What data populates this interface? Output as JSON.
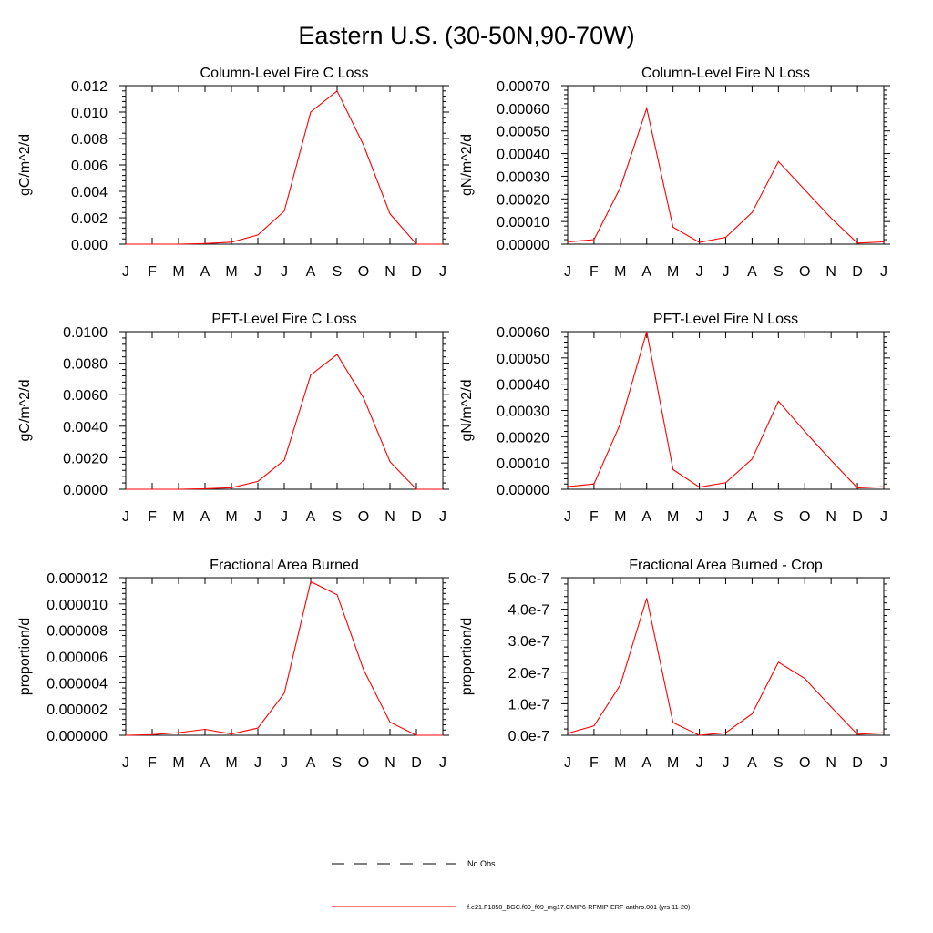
{
  "figure": {
    "title": "Eastern U.S. (30-50N,90-70W)"
  },
  "legend": {
    "obs_label": "No Obs",
    "model_label": "f.e21.F1850_BGC.f09_f09_mg17.CMIP6-RFMIP-ERF-anthro.001 (yrs 11-20)",
    "model_color": "#ff0000",
    "obs_color": "#000000"
  },
  "chart_data": [
    {
      "type": "line",
      "title": "Column-Level Fire C Loss",
      "ylabel": "gC/m^2/d",
      "xlabel": "",
      "categories": [
        "J",
        "F",
        "M",
        "A",
        "M",
        "J",
        "J",
        "A",
        "S",
        "O",
        "N",
        "D",
        "J"
      ],
      "ylim": [
        0,
        0.012
      ],
      "yticks": [
        0,
        0.002,
        0.004,
        0.006,
        0.008,
        0.01,
        0.012
      ],
      "ytick_labels": [
        "0.000",
        "0.002",
        "0.004",
        "0.006",
        "0.008",
        "0.010",
        "0.012"
      ],
      "series": [
        {
          "name": "f.e21.F1850_BGC.f09_f09_mg17.CMIP6-RFMIP-ERF-anthro.001 (yrs 11-20)",
          "color": "#ff0000",
          "values": [
            0.0,
            0.0,
            0.0,
            5e-05,
            0.00015,
            0.0007,
            0.0025,
            0.01,
            0.0116,
            0.0075,
            0.0023,
            0.0,
            0.0
          ]
        }
      ]
    },
    {
      "type": "line",
      "title": "Column-Level Fire N Loss",
      "ylabel": "gN/m^2/d",
      "xlabel": "",
      "categories": [
        "J",
        "F",
        "M",
        "A",
        "M",
        "J",
        "J",
        "A",
        "S",
        "O",
        "N",
        "D",
        "J"
      ],
      "ylim": [
        0,
        0.0007
      ],
      "yticks": [
        0,
        0.0001,
        0.0002,
        0.0003,
        0.0004,
        0.0005,
        0.0006,
        0.0007
      ],
      "ytick_labels": [
        "0.00000",
        "0.00010",
        "0.00020",
        "0.00030",
        "0.00040",
        "0.00050",
        "0.00060",
        "0.00070"
      ],
      "series": [
        {
          "name": "f.e21.F1850_BGC.f09_f09_mg17.CMIP6-RFMIP-ERF-anthro.001 (yrs 11-20)",
          "color": "#ff0000",
          "values": [
            1e-05,
            2e-05,
            0.00025,
            0.0006,
            7.5e-05,
            8e-06,
            3e-05,
            0.00014,
            0.000365,
            0.00024,
            0.000115,
            5e-06,
            1e-05
          ]
        }
      ]
    },
    {
      "type": "line",
      "title": "PFT-Level Fire C Loss",
      "ylabel": "gC/m^2/d",
      "xlabel": "",
      "categories": [
        "J",
        "F",
        "M",
        "A",
        "M",
        "J",
        "J",
        "A",
        "S",
        "O",
        "N",
        "D",
        "J"
      ],
      "ylim": [
        0,
        0.01
      ],
      "yticks": [
        0,
        0.002,
        0.004,
        0.006,
        0.008,
        0.01
      ],
      "ytick_labels": [
        "0.0000",
        "0.0020",
        "0.0040",
        "0.0060",
        "0.0080",
        "0.0100"
      ],
      "series": [
        {
          "name": "f.e21.F1850_BGC.f09_f09_mg17.CMIP6-RFMIP-ERF-anthro.001 (yrs 11-20)",
          "color": "#ff0000",
          "values": [
            0.0,
            0.0,
            0.0,
            3e-05,
            0.0001,
            0.0005,
            0.00185,
            0.00725,
            0.00855,
            0.0058,
            0.00175,
            0.0,
            0.0
          ]
        }
      ]
    },
    {
      "type": "line",
      "title": "PFT-Level Fire N Loss",
      "ylabel": "gN/m^2/d",
      "xlabel": "",
      "categories": [
        "J",
        "F",
        "M",
        "A",
        "M",
        "J",
        "J",
        "A",
        "S",
        "O",
        "N",
        "D",
        "J"
      ],
      "ylim": [
        0,
        0.0006
      ],
      "yticks": [
        0,
        0.0001,
        0.0002,
        0.0003,
        0.0004,
        0.0005,
        0.0006
      ],
      "ytick_labels": [
        "0.00000",
        "0.00010",
        "0.00020",
        "0.00030",
        "0.00040",
        "0.00050",
        "0.00060"
      ],
      "series": [
        {
          "name": "f.e21.F1850_BGC.f09_f09_mg17.CMIP6-RFMIP-ERF-anthro.001 (yrs 11-20)",
          "color": "#ff0000",
          "values": [
            1e-05,
            2e-05,
            0.00025,
            0.0006,
            7.5e-05,
            8e-06,
            2.5e-05,
            0.000115,
            0.000335,
            0.00022,
            0.00011,
            5e-06,
            1e-05
          ]
        }
      ]
    },
    {
      "type": "line",
      "title": "Fractional Area Burned",
      "ylabel": "proportion/d",
      "xlabel": "",
      "categories": [
        "J",
        "F",
        "M",
        "A",
        "M",
        "J",
        "J",
        "A",
        "S",
        "O",
        "N",
        "D",
        "J"
      ],
      "ylim": [
        0,
        1.2e-05
      ],
      "yticks": [
        0,
        2e-06,
        4e-06,
        6e-06,
        8e-06,
        1e-05,
        1.2e-05
      ],
      "ytick_labels": [
        "0.000000",
        "0.000002",
        "0.000004",
        "0.000006",
        "0.000008",
        "0.000010",
        "0.000012"
      ],
      "series": [
        {
          "name": "f.e21.F1850_BGC.f09_f09_mg17.CMIP6-RFMIP-ERF-anthro.001 (yrs 11-20)",
          "color": "#ff0000",
          "values": [
            0.0,
            5e-08,
            2e-07,
            4.5e-07,
            1e-07,
            5.5e-07,
            3.2e-06,
            1.17e-05,
            1.07e-05,
            5e-06,
            1e-06,
            0.0,
            0.0
          ]
        }
      ]
    },
    {
      "type": "line",
      "title": "Fractional Area Burned - Crop",
      "ylabel": "proportion/d",
      "xlabel": "",
      "categories": [
        "J",
        "F",
        "M",
        "A",
        "M",
        "J",
        "J",
        "A",
        "S",
        "O",
        "N",
        "D",
        "J"
      ],
      "ylim": [
        0,
        5e-07
      ],
      "yticks": [
        0,
        1e-07,
        2e-07,
        3e-07,
        4e-07,
        5e-07
      ],
      "ytick_labels": [
        "0.0e-7",
        "1.0e-7",
        "2.0e-7",
        "3.0e-7",
        "4.0e-7",
        "5.0e-7"
      ],
      "series": [
        {
          "name": "f.e21.F1850_BGC.f09_f09_mg17.CMIP6-RFMIP-ERF-anthro.001 (yrs 11-20)",
          "color": "#ff0000",
          "values": [
            6e-09,
            3e-08,
            1.6e-07,
            4.35e-07,
            4e-08,
            0,
            8e-09,
            6.8e-08,
            2.32e-07,
            1.8e-07,
            9e-08,
            3e-09,
            8e-09
          ]
        }
      ]
    }
  ]
}
